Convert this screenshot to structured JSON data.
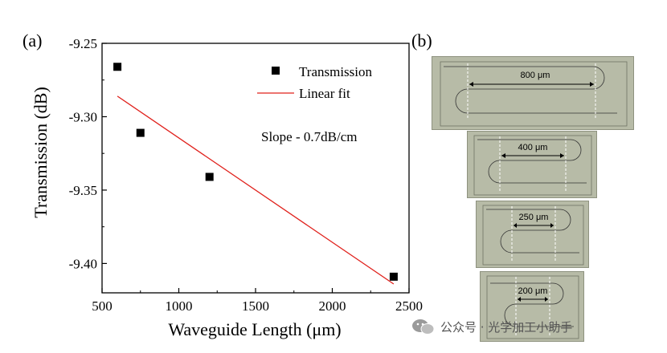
{
  "panels": {
    "a_label": "(a)",
    "b_label": "(b)"
  },
  "chart_data": {
    "type": "scatter",
    "xlabel": "Waveguide Length (μm)",
    "ylabel": "Transmission (dB)",
    "xlim": [
      500,
      2500
    ],
    "ylim": [
      -9.42,
      -9.25
    ],
    "xticks": [
      500,
      1000,
      1500,
      2000,
      2500
    ],
    "yticks": [
      -9.25,
      -9.3,
      -9.35,
      -9.4
    ],
    "xtick_labels": [
      "500",
      "1000",
      "1500",
      "2000",
      "2500"
    ],
    "ytick_labels": [
      "-9.25",
      "-9.30",
      "-9.35",
      "-9.40"
    ],
    "series": [
      {
        "name": "Transmission",
        "kind": "scatter",
        "marker": "square",
        "color": "#000000",
        "x": [
          600,
          750,
          1200,
          2400
        ],
        "y": [
          -9.266,
          -9.311,
          -9.341,
          -9.409
        ]
      },
      {
        "name": "Linear fit",
        "kind": "line",
        "color": "#e0201b",
        "x": [
          600,
          2400
        ],
        "y": [
          -9.286,
          -9.414
        ]
      }
    ],
    "annotation": "Slope - 0.7dB/cm",
    "legend_position": "top-right",
    "grid": false
  },
  "micrographs": [
    {
      "label": "800 μm"
    },
    {
      "label": "400 μm"
    },
    {
      "label": "250 μm"
    },
    {
      "label": "200 μm"
    }
  ],
  "watermark": {
    "text": "公众号 · 光学加工小助手"
  },
  "colors": {
    "fit": "#e0201b",
    "micro_bg": "#b7bba7"
  }
}
